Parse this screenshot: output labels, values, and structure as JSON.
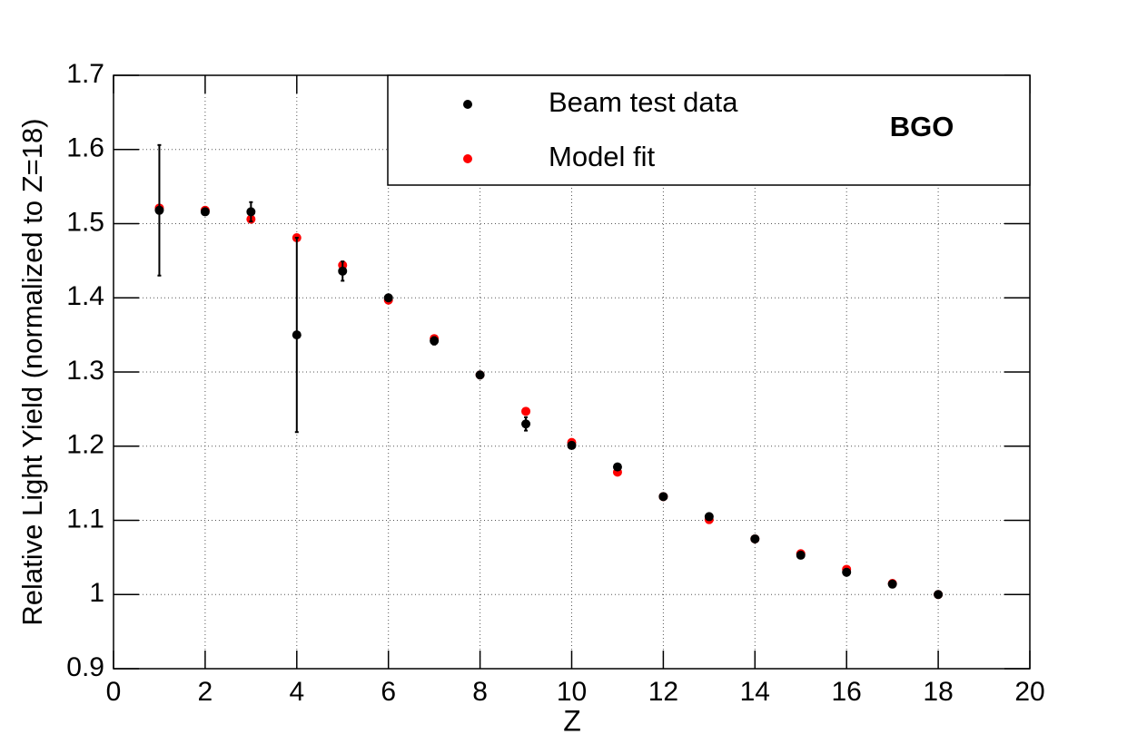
{
  "chart_data": {
    "type": "scatter",
    "x_label": "Z",
    "y_label": "Relative Light Yield (normalized to Z=18)",
    "annotation": "BGO",
    "xlim": [
      0,
      20
    ],
    "xticks": [
      0,
      2,
      4,
      6,
      8,
      10,
      12,
      14,
      16,
      18,
      20
    ],
    "ylim": [
      0.9,
      1.7
    ],
    "yticks": [
      0.9,
      1,
      1.1,
      1.2,
      1.3,
      1.4,
      1.5,
      1.6,
      1.7
    ],
    "grid": true,
    "legend": "top-right",
    "series": [
      {
        "name": "Beam test data",
        "color": "#000000",
        "x": [
          1,
          2,
          3,
          4,
          5,
          6,
          7,
          8,
          9,
          10,
          11,
          12,
          13,
          14,
          15,
          16,
          17,
          18
        ],
        "values": [
          1.518,
          1.516,
          1.516,
          1.35,
          1.436,
          1.4,
          1.342,
          1.296,
          1.23,
          1.201,
          1.172,
          1.132,
          1.105,
          1.075,
          1.053,
          1.03,
          1.014,
          1.0
        ],
        "errors": [
          0.088,
          0.003,
          0.013,
          0.131,
          0.013,
          0.004,
          0.005,
          0.003,
          0.009,
          0.003,
          0.003,
          0.003,
          0.003,
          0.003,
          0.003,
          0.003,
          0.003,
          0.003
        ]
      },
      {
        "name": "Model fit",
        "color": "#ff0000",
        "x": [
          1,
          2,
          3,
          4,
          5,
          6,
          7,
          8,
          9,
          10,
          11,
          12,
          13,
          14,
          15,
          16,
          17,
          18
        ],
        "values": [
          1.521,
          1.518,
          1.506,
          1.481,
          1.444,
          1.397,
          1.345,
          1.296,
          1.247,
          1.205,
          1.165,
          1.132,
          1.101,
          1.075,
          1.055,
          1.034,
          1.015,
          1.0
        ]
      }
    ]
  }
}
